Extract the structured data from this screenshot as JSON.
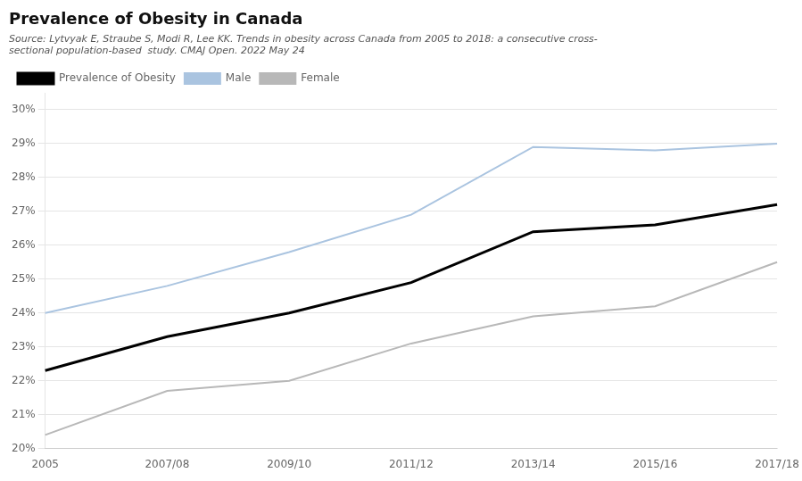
{
  "chart_data": {
    "type": "line",
    "title": "Prevalence of Obesity in Canada",
    "subtitle": [
      "Source: Lytvyak E, Straube S, Modi R, Lee KK. Trends in obesity across Canada from 2005 to 2018: a consecutive cross-",
      "sectional population-based  study. CMAJ Open. 2022 May 24"
    ],
    "categories": [
      "2005",
      "2007/08",
      "2009/10",
      "2011/12",
      "2013/14",
      "2015/16",
      "2017/18"
    ],
    "series": [
      {
        "name": "Prevalence of Obesity",
        "color": "#000000",
        "values": [
          22.3,
          23.3,
          24.0,
          24.9,
          26.4,
          26.6,
          27.2
        ]
      },
      {
        "name": "Male",
        "color": "#aac4e0",
        "values": [
          24.0,
          24.8,
          25.8,
          26.9,
          28.9,
          28.8,
          29.0
        ]
      },
      {
        "name": "Female",
        "color": "#b8b8b8",
        "values": [
          20.4,
          21.7,
          22.0,
          23.1,
          23.9,
          24.2,
          25.5
        ]
      }
    ],
    "ylim": [
      20.0,
      30.5
    ],
    "yticks": [
      {
        "value": 20,
        "label": "20%"
      },
      {
        "value": 21,
        "label": "21%"
      },
      {
        "value": 22,
        "label": "22%"
      },
      {
        "value": 23,
        "label": "23%"
      },
      {
        "value": 24,
        "label": "24%"
      },
      {
        "value": 25,
        "label": "25%"
      },
      {
        "value": 26,
        "label": "26%"
      },
      {
        "value": 27,
        "label": "27%"
      },
      {
        "value": 28,
        "label": "28%"
      },
      {
        "value": 29,
        "label": "29%"
      },
      {
        "value": 30,
        "label": "30%"
      }
    ],
    "grid": "y",
    "legend": "upper left"
  }
}
